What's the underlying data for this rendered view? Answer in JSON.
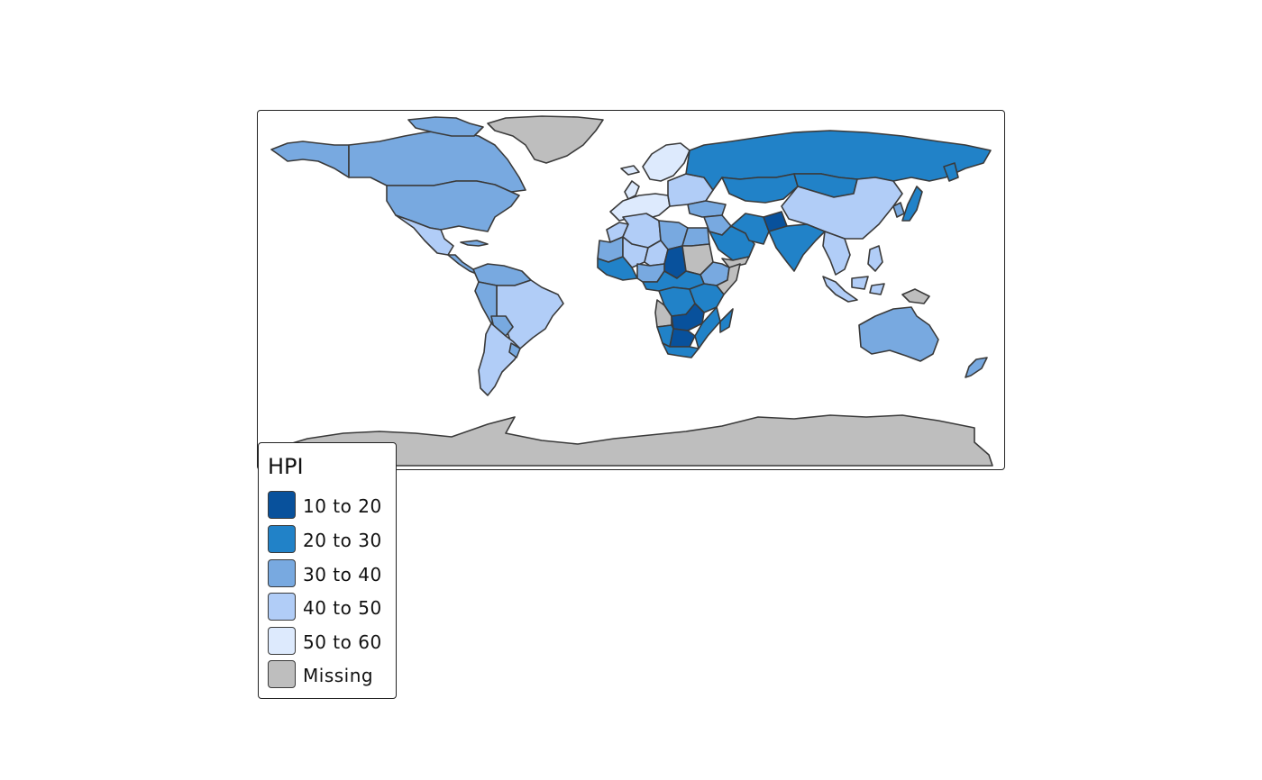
{
  "legend": {
    "title": "HPI",
    "items": [
      {
        "label": "10 to 20",
        "color": "#08519c"
      },
      {
        "label": "20 to 30",
        "color": "#2182c8"
      },
      {
        "label": "30 to 40",
        "color": "#78a9e0"
      },
      {
        "label": "40 to 50",
        "color": "#b1cdf7"
      },
      {
        "label": "50 to 60",
        "color": "#ddeafd"
      },
      {
        "label": "Missing",
        "color": "#bebebe"
      }
    ]
  },
  "map": {
    "border_color": "#3a3a3a",
    "regions": [
      {
        "name": "Canada",
        "class": "30 to 40"
      },
      {
        "name": "Alaska",
        "class": "30 to 40"
      },
      {
        "name": "Greenland",
        "class": "Missing"
      },
      {
        "name": "United States",
        "class": "30 to 40"
      },
      {
        "name": "Mexico",
        "class": "40 to 50"
      },
      {
        "name": "Central America",
        "class": "30 to 40"
      },
      {
        "name": "Caribbean",
        "class": "30 to 40"
      },
      {
        "name": "Colombia and Venezuela",
        "class": "30 to 40"
      },
      {
        "name": "Brazil",
        "class": "40 to 50"
      },
      {
        "name": "Peru",
        "class": "30 to 40"
      },
      {
        "name": "Bolivia",
        "class": "30 to 40"
      },
      {
        "name": "Argentina and Chile",
        "class": "40 to 50"
      },
      {
        "name": "Uruguay",
        "class": "30 to 40"
      },
      {
        "name": "Scandinavia",
        "class": "50 to 60"
      },
      {
        "name": "Western Europe",
        "class": "50 to 60"
      },
      {
        "name": "Eastern Europe",
        "class": "40 to 50"
      },
      {
        "name": "Iceland",
        "class": "50 to 60"
      },
      {
        "name": "British Isles",
        "class": "50 to 60"
      },
      {
        "name": "Russia",
        "class": "20 to 30"
      },
      {
        "name": "Kazakhstan",
        "class": "20 to 30"
      },
      {
        "name": "Mongolia",
        "class": "20 to 30"
      },
      {
        "name": "Turkey",
        "class": "30 to 40"
      },
      {
        "name": "China",
        "class": "40 to 50"
      },
      {
        "name": "Middle East",
        "class": "30 to 40"
      },
      {
        "name": "Saudi Arabia",
        "class": "20 to 30"
      },
      {
        "name": "Yemen",
        "class": "Missing"
      },
      {
        "name": "Iran",
        "class": "20 to 30"
      },
      {
        "name": "Afghanistan",
        "class": "10 to 20"
      },
      {
        "name": "India",
        "class": "20 to 30"
      },
      {
        "name": "Southeast Asia",
        "class": "40 to 50"
      },
      {
        "name": "Japan",
        "class": "20 to 30"
      },
      {
        "name": "Korea",
        "class": "30 to 40"
      },
      {
        "name": "Indonesia",
        "class": "40 to 50"
      },
      {
        "name": "Philippines",
        "class": "40 to 50"
      },
      {
        "name": "Papua New Guinea",
        "class": "Missing"
      },
      {
        "name": "Australia",
        "class": "30 to 40"
      },
      {
        "name": "New Zealand",
        "class": "30 to 40"
      },
      {
        "name": "Algeria",
        "class": "40 to 50"
      },
      {
        "name": "Morocco",
        "class": "40 to 50"
      },
      {
        "name": "Mauritania",
        "class": "30 to 40"
      },
      {
        "name": "Mali",
        "class": "40 to 50"
      },
      {
        "name": "Niger",
        "class": "40 to 50"
      },
      {
        "name": "Libya",
        "class": "30 to 40"
      },
      {
        "name": "Egypt",
        "class": "30 to 40"
      },
      {
        "name": "Sudan",
        "class": "Missing"
      },
      {
        "name": "Chad",
        "class": "10 to 20"
      },
      {
        "name": "West Africa",
        "class": "20 to 30"
      },
      {
        "name": "Nigeria",
        "class": "30 to 40"
      },
      {
        "name": "Ethiopia",
        "class": "30 to 40"
      },
      {
        "name": "Somalia",
        "class": "Missing"
      },
      {
        "name": "Central Africa",
        "class": "20 to 30"
      },
      {
        "name": "DR Congo",
        "class": "20 to 30"
      },
      {
        "name": "East Africa",
        "class": "20 to 30"
      },
      {
        "name": "Angola",
        "class": "Missing"
      },
      {
        "name": "Zambia",
        "class": "10 to 20"
      },
      {
        "name": "Namibia",
        "class": "20 to 30"
      },
      {
        "name": "Botswana",
        "class": "10 to 20"
      },
      {
        "name": "South Africa",
        "class": "20 to 30"
      },
      {
        "name": "Mozambique",
        "class": "20 to 30"
      },
      {
        "name": "Madagascar",
        "class": "20 to 30"
      },
      {
        "name": "Antarctica",
        "class": "Missing"
      }
    ]
  }
}
